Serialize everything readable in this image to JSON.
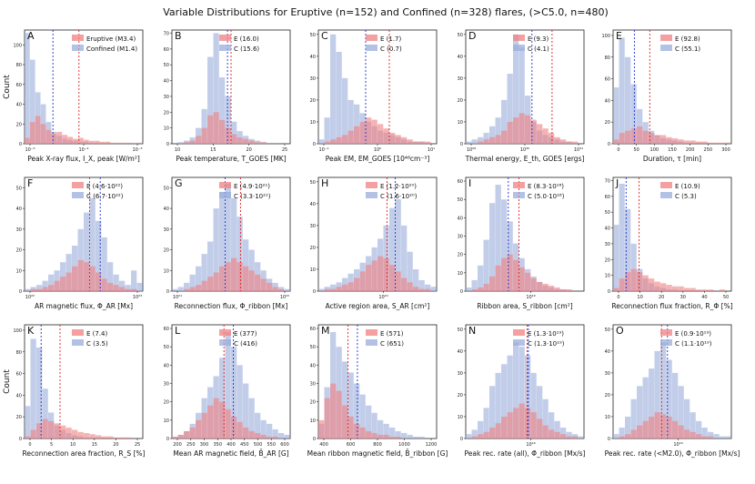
{
  "figure": {
    "title": "Variable Distributions for Eruptive (n=152) and Confined (n=328) flares, (>C5.0, n=480)",
    "ylabel": "Count",
    "colors": {
      "eruptive": "#f08080",
      "confined": "#9aaedb",
      "eruptive_line": "#e02020",
      "confined_line": "#2030d0"
    }
  },
  "chart_data": [
    {
      "type": "bar",
      "label": "A",
      "xlabel": "Peak X-ray flux, I_X, peak [W/m²]",
      "xticks": [
        "10⁻⁵",
        "10⁻⁴",
        "10⁻³"
      ],
      "yticks": [
        "0",
        "20",
        "40",
        "60",
        "80",
        "100"
      ],
      "ylim": [
        0,
        115
      ],
      "legend": [
        "Eruptive (M3.4)",
        "Confined (M1.4)"
      ],
      "eruptive_median_frac": 0.46,
      "confined_median_frac": 0.24,
      "series": [
        {
          "name": "Confined",
          "values": [
            112,
            85,
            52,
            40,
            22,
            12,
            8,
            5,
            4,
            3,
            2,
            2,
            1,
            1,
            1,
            0,
            0,
            0,
            0,
            0,
            0,
            0
          ]
        },
        {
          "name": "Eruptive",
          "values": [
            6,
            22,
            28,
            20,
            14,
            10,
            12,
            9,
            7,
            5,
            6,
            4,
            3,
            3,
            2,
            2,
            1,
            1,
            1,
            1,
            0,
            1
          ]
        }
      ]
    },
    {
      "type": "bar",
      "label": "B",
      "xlabel": "Peak temperature, T_GOES [MK]",
      "xticks": [
        "10",
        "15",
        "20",
        "25"
      ],
      "yticks": [
        "0",
        "10",
        "20",
        "30",
        "40",
        "50",
        "60",
        "70"
      ],
      "ylim": [
        0,
        72
      ],
      "legend": [
        "E (16.0)",
        "C (15.6)"
      ],
      "eruptive_median_frac": 0.5,
      "confined_median_frac": 0.47,
      "series": [
        {
          "name": "Confined",
          "values": [
            0,
            1,
            2,
            4,
            10,
            22,
            55,
            70,
            42,
            30,
            14,
            8,
            5,
            3,
            2,
            1,
            0,
            0,
            0,
            0
          ]
        },
        {
          "name": "Eruptive",
          "values": [
            0,
            0,
            1,
            2,
            5,
            10,
            18,
            20,
            15,
            10,
            6,
            4,
            3,
            2,
            1,
            1,
            0,
            0,
            0,
            0
          ]
        }
      ]
    },
    {
      "type": "bar",
      "label": "C",
      "xlabel": "Peak EM, EM_GOES [10⁴⁸cm⁻³]",
      "xticks": [
        "10⁻¹",
        "10⁰",
        "10¹"
      ],
      "yticks": [
        "0",
        "10",
        "20",
        "30",
        "40",
        "50"
      ],
      "ylim": [
        0,
        52
      ],
      "legend": [
        "E (1.7)",
        "C (0.7)"
      ],
      "eruptive_median_frac": 0.6,
      "confined_median_frac": 0.4,
      "series": [
        {
          "name": "Confined",
          "values": [
            2,
            12,
            50,
            42,
            30,
            20,
            18,
            14,
            10,
            8,
            6,
            5,
            4,
            3,
            2,
            1,
            1,
            1,
            0,
            0
          ]
        },
        {
          "name": "Eruptive",
          "values": [
            0,
            1,
            2,
            3,
            4,
            6,
            8,
            10,
            12,
            11,
            9,
            7,
            5,
            4,
            3,
            2,
            1,
            1,
            1,
            0
          ]
        }
      ]
    },
    {
      "type": "bar",
      "label": "D",
      "xlabel": "Thermal energy, E_th, GOES [ergs]",
      "xticks": [
        "10²⁹",
        "10³⁰",
        "10³¹"
      ],
      "yticks": [
        "0",
        "10",
        "20",
        "30",
        "40",
        "50"
      ],
      "ylim": [
        0,
        52
      ],
      "legend": [
        "E (9.3)",
        "C (4.1)"
      ],
      "eruptive_median_frac": 0.73,
      "confined_median_frac": 0.56,
      "series": [
        {
          "name": "Confined",
          "values": [
            1,
            2,
            3,
            5,
            8,
            12,
            20,
            32,
            50,
            44,
            22,
            10,
            6,
            4,
            3,
            2,
            1,
            1,
            0,
            0
          ]
        },
        {
          "name": "Eruptive",
          "values": [
            0,
            0,
            1,
            2,
            3,
            4,
            6,
            10,
            12,
            14,
            13,
            11,
            9,
            7,
            5,
            3,
            2,
            1,
            1,
            0
          ]
        }
      ]
    },
    {
      "type": "bar",
      "label": "E",
      "xlabel": "Duration, τ [min]",
      "xticks": [
        "0",
        "50",
        "100",
        "150",
        "200",
        "250",
        "300"
      ],
      "yticks": [
        "0",
        "20",
        "40",
        "60",
        "80",
        "100"
      ],
      "ylim": [
        0,
        105
      ],
      "legend": [
        "E (92.8)",
        "C (55.1)"
      ],
      "eruptive_median_frac": 0.31,
      "confined_median_frac": 0.18,
      "series": [
        {
          "name": "Confined",
          "values": [
            52,
            98,
            80,
            55,
            32,
            20,
            12,
            8,
            5,
            4,
            3,
            2,
            1,
            1,
            1,
            0,
            0,
            0,
            0,
            0
          ]
        },
        {
          "name": "Eruptive",
          "values": [
            4,
            10,
            12,
            14,
            16,
            12,
            10,
            8,
            8,
            6,
            5,
            4,
            3,
            3,
            2,
            2,
            1,
            1,
            1,
            1
          ]
        }
      ]
    },
    {
      "type": "bar",
      "label": "F",
      "xlabel": "AR magnetic flux, Φ_AR [Mx]",
      "xticks": [
        "10²²",
        "10²³"
      ],
      "yticks": [
        "0",
        "10",
        "20",
        "30",
        "40",
        "50"
      ],
      "ylim": [
        0,
        55
      ],
      "legend": [
        "E (4.6·10²²)",
        "C (6.7·10²²)"
      ],
      "eruptive_median_frac": 0.55,
      "confined_median_frac": 0.64,
      "series": [
        {
          "name": "Confined",
          "values": [
            1,
            2,
            3,
            5,
            8,
            10,
            14,
            18,
            22,
            30,
            38,
            45,
            34,
            26,
            14,
            8,
            5,
            3,
            10,
            4
          ]
        },
        {
          "name": "Eruptive",
          "values": [
            0,
            1,
            1,
            2,
            3,
            5,
            7,
            9,
            12,
            15,
            14,
            12,
            9,
            6,
            4,
            3,
            2,
            1,
            1,
            0
          ]
        }
      ]
    },
    {
      "type": "bar",
      "label": "G",
      "xlabel": "Reconnection flux, Φ_ribbon [Mx]",
      "xticks": [
        "10²¹",
        "10²²"
      ],
      "yticks": [
        "0",
        "10",
        "20",
        "30",
        "40",
        "50"
      ],
      "ylim": [
        0,
        55
      ],
      "legend": [
        "E (4.9·10²¹)",
        "C (3.3·10²¹)"
      ],
      "eruptive_median_frac": 0.58,
      "confined_median_frac": 0.45,
      "series": [
        {
          "name": "Confined",
          "values": [
            1,
            2,
            4,
            8,
            12,
            18,
            24,
            40,
            48,
            52,
            45,
            36,
            25,
            20,
            14,
            10,
            6,
            4,
            2,
            1
          ]
        },
        {
          "name": "Eruptive",
          "values": [
            0,
            0,
            1,
            2,
            3,
            5,
            7,
            9,
            12,
            14,
            16,
            14,
            12,
            10,
            8,
            6,
            4,
            2,
            1,
            0
          ]
        }
      ]
    },
    {
      "type": "bar",
      "label": "H",
      "xlabel": "Active region area, S_AR [cm²]",
      "xticks": [
        "10²⁰"
      ],
      "yticks": [
        "0",
        "10",
        "20",
        "30",
        "40",
        "50"
      ],
      "ylim": [
        0,
        52
      ],
      "legend": [
        "E (1.2·10²⁰)",
        "C (1.6·10²⁰)"
      ],
      "eruptive_median_frac": 0.58,
      "confined_median_frac": 0.65,
      "series": [
        {
          "name": "Confined",
          "values": [
            1,
            2,
            3,
            4,
            6,
            8,
            10,
            13,
            16,
            20,
            24,
            30,
            38,
            42,
            30,
            18,
            10,
            5,
            3,
            2
          ]
        },
        {
          "name": "Eruptive",
          "values": [
            0,
            1,
            1,
            2,
            3,
            4,
            6,
            9,
            12,
            14,
            16,
            15,
            12,
            9,
            6,
            4,
            2,
            1,
            1,
            0
          ]
        }
      ]
    },
    {
      "type": "bar",
      "label": "I",
      "xlabel": "Ribbon area, S_ribbon [cm²]",
      "xticks": [
        "10¹⁹"
      ],
      "yticks": [
        "0",
        "10",
        "20",
        "30",
        "40",
        "50",
        "60"
      ],
      "ylim": [
        0,
        62
      ],
      "legend": [
        "E (8.3·10¹⁸)",
        "C (5.0·10¹⁸)"
      ],
      "eruptive_median_frac": 0.45,
      "confined_median_frac": 0.36,
      "series": [
        {
          "name": "Confined",
          "values": [
            2,
            6,
            14,
            28,
            48,
            58,
            50,
            38,
            26,
            18,
            12,
            8,
            5,
            3,
            2,
            1,
            1,
            0,
            0,
            0
          ]
        },
        {
          "name": "Eruptive",
          "values": [
            0,
            1,
            2,
            4,
            8,
            14,
            18,
            20,
            17,
            13,
            10,
            7,
            5,
            4,
            3,
            2,
            1,
            1,
            0,
            0
          ]
        }
      ]
    },
    {
      "type": "bar",
      "label": "J",
      "xlabel": "Reconnection flux fraction, R_Φ [%]",
      "xticks": [
        "0",
        "10",
        "20",
        "30",
        "40",
        "50"
      ],
      "yticks": [
        "0",
        "10",
        "20",
        "30",
        "40",
        "50",
        "60",
        "70"
      ],
      "ylim": [
        0,
        72
      ],
      "legend": [
        "E (10.9)",
        "C (5.3)"
      ],
      "eruptive_median_frac": 0.22,
      "confined_median_frac": 0.11,
      "series": [
        {
          "name": "Confined",
          "values": [
            42,
            68,
            52,
            30,
            14,
            8,
            5,
            3,
            2,
            1,
            1,
            0,
            0,
            0,
            0,
            0,
            0,
            0,
            0,
            0
          ]
        },
        {
          "name": "Eruptive",
          "values": [
            2,
            8,
            12,
            14,
            12,
            10,
            8,
            6,
            5,
            4,
            3,
            3,
            2,
            2,
            1,
            1,
            1,
            0,
            1,
            0
          ]
        }
      ]
    },
    {
      "type": "bar",
      "label": "K",
      "xlabel": "Reconnection area fraction, R_S [%]",
      "xticks": [
        "0",
        "5",
        "10",
        "15",
        "20",
        "25"
      ],
      "yticks": [
        "0",
        "20",
        "40",
        "60",
        "80",
        "100"
      ],
      "ylim": [
        0,
        105
      ],
      "legend": [
        "E (7.4)",
        "C (3.5)"
      ],
      "eruptive_median_frac": 0.3,
      "confined_median_frac": 0.14,
      "series": [
        {
          "name": "Confined",
          "values": [
            30,
            92,
            84,
            46,
            24,
            12,
            8,
            5,
            3,
            2,
            1,
            1,
            0,
            0,
            0,
            0,
            0,
            0,
            0,
            0
          ]
        },
        {
          "name": "Eruptive",
          "values": [
            2,
            8,
            14,
            18,
            16,
            14,
            12,
            10,
            8,
            6,
            5,
            4,
            3,
            2,
            2,
            1,
            1,
            1,
            0,
            0
          ]
        }
      ]
    },
    {
      "type": "bar",
      "label": "L",
      "xlabel": "Mean AR magnetic field, B̄_AR [G]",
      "xticks": [
        "200",
        "250",
        "300",
        "350",
        "400",
        "450",
        "500",
        "550",
        "600"
      ],
      "yticks": [
        "0",
        "10",
        "20",
        "30",
        "40",
        "50",
        "60"
      ],
      "ylim": [
        0,
        62
      ],
      "legend": [
        "E (377)",
        "C (416)"
      ],
      "eruptive_median_frac": 0.44,
      "confined_median_frac": 0.52,
      "series": [
        {
          "name": "Confined",
          "values": [
            1,
            2,
            4,
            8,
            14,
            22,
            28,
            34,
            44,
            58,
            50,
            40,
            30,
            22,
            14,
            10,
            8,
            5,
            3,
            2
          ]
        },
        {
          "name": "Eruptive",
          "values": [
            1,
            2,
            4,
            6,
            10,
            14,
            18,
            22,
            20,
            16,
            12,
            9,
            6,
            4,
            3,
            2,
            1,
            1,
            0,
            0
          ]
        }
      ]
    },
    {
      "type": "bar",
      "label": "M",
      "xlabel": "Mean ribbon magnetic field, B̄_ribbon [G]",
      "xticks": [
        "400",
        "600",
        "800",
        "1000",
        "1200"
      ],
      "yticks": [
        "0",
        "10",
        "20",
        "30",
        "40",
        "50",
        "60"
      ],
      "ylim": [
        0,
        62
      ],
      "legend": [
        "E (571)",
        "C (651)"
      ],
      "eruptive_median_frac": 0.25,
      "confined_median_frac": 0.33,
      "series": [
        {
          "name": "Confined",
          "values": [
            8,
            28,
            58,
            50,
            42,
            36,
            30,
            24,
            18,
            14,
            10,
            8,
            6,
            4,
            3,
            2,
            1,
            1,
            0,
            0
          ]
        },
        {
          "name": "Eruptive",
          "values": [
            10,
            22,
            30,
            26,
            18,
            12,
            8,
            6,
            4,
            3,
            2,
            2,
            1,
            1,
            0,
            0,
            0,
            0,
            0,
            0
          ]
        }
      ]
    },
    {
      "type": "bar",
      "label": "N",
      "xlabel": "Peak rec. rate (all), Φ̇_ribbon [Mx/s]",
      "xticks": [
        "10¹⁹"
      ],
      "yticks": [
        "0",
        "10",
        "20",
        "30",
        "40",
        "50"
      ],
      "ylim": [
        0,
        52
      ],
      "legend": [
        "E (1.3·10¹⁹)",
        "C (1.3·10¹⁹)"
      ],
      "eruptive_median_frac": 0.52,
      "confined_median_frac": 0.53,
      "series": [
        {
          "name": "Confined",
          "values": [
            2,
            4,
            8,
            14,
            24,
            30,
            34,
            38,
            44,
            42,
            38,
            30,
            24,
            18,
            12,
            8,
            5,
            3,
            2,
            1
          ]
        },
        {
          "name": "Eruptive",
          "values": [
            0,
            1,
            2,
            3,
            5,
            7,
            10,
            12,
            14,
            16,
            14,
            12,
            9,
            6,
            4,
            3,
            2,
            1,
            1,
            0
          ]
        }
      ]
    },
    {
      "type": "bar",
      "label": "O",
      "xlabel": "Peak rec. rate (<M2.0), Φ̇_ribbon [Mx/s]",
      "xticks": [
        "10¹⁹"
      ],
      "yticks": [
        "0",
        "10",
        "20",
        "30",
        "40",
        "50"
      ],
      "ylim": [
        0,
        52
      ],
      "legend": [
        "E (0.9·10¹⁹)",
        "C (1.1·10¹⁹)"
      ],
      "eruptive_median_frac": 0.41,
      "confined_median_frac": 0.46,
      "series": [
        {
          "name": "Confined",
          "values": [
            2,
            5,
            10,
            18,
            24,
            28,
            32,
            40,
            44,
            36,
            30,
            24,
            18,
            12,
            8,
            5,
            3,
            2,
            1,
            1
          ]
        },
        {
          "name": "Eruptive",
          "values": [
            0,
            1,
            2,
            4,
            6,
            8,
            10,
            12,
            11,
            10,
            8,
            6,
            4,
            3,
            2,
            1,
            1,
            0,
            0,
            0
          ]
        }
      ]
    }
  ]
}
